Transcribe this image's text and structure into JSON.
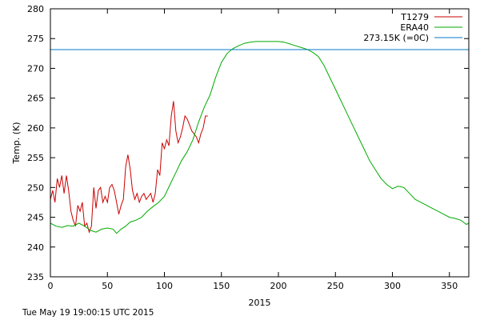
{
  "footer": "Tue May 19 19:00:15 UTC 2015",
  "chart_data": {
    "type": "line",
    "xlabel": "2015",
    "ylabel": "Temp. (K)",
    "xlim": [
      0,
      367
    ],
    "ylim": [
      235,
      280
    ],
    "xticks": [
      0,
      50,
      100,
      150,
      200,
      250,
      300,
      350
    ],
    "yticks": [
      235,
      240,
      245,
      250,
      255,
      260,
      265,
      270,
      275,
      280
    ],
    "legend_position": "top-right",
    "grid": false,
    "series": [
      {
        "name": "T1279",
        "color": "#cc0000",
        "points": [
          [
            0,
            248
          ],
          [
            2,
            249.5
          ],
          [
            4,
            247.5
          ],
          [
            6,
            251.5
          ],
          [
            8,
            250
          ],
          [
            10,
            252
          ],
          [
            12,
            249
          ],
          [
            14,
            252
          ],
          [
            16,
            249.5
          ],
          [
            18,
            246
          ],
          [
            20,
            244.5
          ],
          [
            22,
            243.5
          ],
          [
            24,
            247
          ],
          [
            26,
            246
          ],
          [
            28,
            247.5
          ],
          [
            30,
            243.5
          ],
          [
            32,
            244
          ],
          [
            34,
            242.5
          ],
          [
            36,
            243.5
          ],
          [
            38,
            250
          ],
          [
            40,
            246.5
          ],
          [
            42,
            249.5
          ],
          [
            44,
            250
          ],
          [
            46,
            247.5
          ],
          [
            48,
            248.5
          ],
          [
            50,
            247.5
          ],
          [
            52,
            250
          ],
          [
            54,
            250.5
          ],
          [
            56,
            249.5
          ],
          [
            58,
            247.5
          ],
          [
            60,
            245.5
          ],
          [
            62,
            247
          ],
          [
            64,
            248
          ],
          [
            66,
            253.5
          ],
          [
            68,
            255.5
          ],
          [
            70,
            253
          ],
          [
            72,
            249.5
          ],
          [
            74,
            248
          ],
          [
            76,
            249
          ],
          [
            78,
            247.5
          ],
          [
            80,
            248.5
          ],
          [
            82,
            249
          ],
          [
            84,
            248
          ],
          [
            86,
            248.5
          ],
          [
            88,
            249
          ],
          [
            90,
            247.5
          ],
          [
            92,
            249
          ],
          [
            94,
            253
          ],
          [
            96,
            252
          ],
          [
            98,
            257.5
          ],
          [
            100,
            256.5
          ],
          [
            102,
            258
          ],
          [
            104,
            257
          ],
          [
            106,
            262
          ],
          [
            108,
            264.5
          ],
          [
            110,
            259.5
          ],
          [
            112,
            257.5
          ],
          [
            114,
            258.5
          ],
          [
            116,
            260
          ],
          [
            118,
            262
          ],
          [
            120,
            261.5
          ],
          [
            122,
            260.5
          ],
          [
            124,
            259.5
          ],
          [
            126,
            259
          ],
          [
            128,
            258.5
          ],
          [
            130,
            257.5
          ],
          [
            132,
            259
          ],
          [
            134,
            260
          ],
          [
            136,
            262
          ],
          [
            138,
            262
          ]
        ]
      },
      {
        "name": "ERA40",
        "color": "#00aa00",
        "points": [
          [
            0,
            244
          ],
          [
            5,
            243.5
          ],
          [
            10,
            243.3
          ],
          [
            15,
            243.6
          ],
          [
            20,
            243.5
          ],
          [
            25,
            244
          ],
          [
            30,
            243.5
          ],
          [
            35,
            242.8
          ],
          [
            40,
            242.5
          ],
          [
            45,
            243
          ],
          [
            50,
            243.2
          ],
          [
            55,
            243
          ],
          [
            58,
            242.3
          ],
          [
            62,
            243
          ],
          [
            66,
            243.5
          ],
          [
            70,
            244.2
          ],
          [
            75,
            244.5
          ],
          [
            80,
            245
          ],
          [
            85,
            246
          ],
          [
            90,
            246.8
          ],
          [
            95,
            247.5
          ],
          [
            100,
            248.5
          ],
          [
            105,
            250.5
          ],
          [
            110,
            252.5
          ],
          [
            115,
            254.5
          ],
          [
            120,
            256
          ],
          [
            125,
            258
          ],
          [
            130,
            261
          ],
          [
            135,
            263.5
          ],
          [
            140,
            265.5
          ],
          [
            145,
            268.5
          ],
          [
            150,
            271
          ],
          [
            155,
            272.5
          ],
          [
            160,
            273.3
          ],
          [
            165,
            273.8
          ],
          [
            170,
            274.2
          ],
          [
            175,
            274.4
          ],
          [
            180,
            274.5
          ],
          [
            185,
            274.5
          ],
          [
            190,
            274.5
          ],
          [
            195,
            274.5
          ],
          [
            200,
            274.5
          ],
          [
            205,
            274.4
          ],
          [
            210,
            274.1
          ],
          [
            215,
            273.8
          ],
          [
            220,
            273.5
          ],
          [
            225,
            273.2
          ],
          [
            230,
            272.7
          ],
          [
            235,
            272
          ],
          [
            240,
            270.5
          ],
          [
            245,
            268.5
          ],
          [
            250,
            266.5
          ],
          [
            255,
            264.5
          ],
          [
            260,
            262.5
          ],
          [
            265,
            260.5
          ],
          [
            270,
            258.5
          ],
          [
            275,
            256.5
          ],
          [
            280,
            254.5
          ],
          [
            285,
            253
          ],
          [
            290,
            251.5
          ],
          [
            295,
            250.5
          ],
          [
            300,
            249.8
          ],
          [
            305,
            250.2
          ],
          [
            310,
            250
          ],
          [
            315,
            249
          ],
          [
            320,
            248
          ],
          [
            325,
            247.5
          ],
          [
            330,
            247
          ],
          [
            335,
            246.5
          ],
          [
            340,
            246
          ],
          [
            345,
            245.5
          ],
          [
            350,
            245
          ],
          [
            355,
            244.8
          ],
          [
            360,
            244.5
          ],
          [
            365,
            243.8
          ],
          [
            367,
            244
          ]
        ]
      },
      {
        "name": "273.15K (=0C)",
        "color": "#0077cc",
        "points": [
          [
            0,
            273.15
          ],
          [
            367,
            273.15
          ]
        ]
      }
    ]
  }
}
